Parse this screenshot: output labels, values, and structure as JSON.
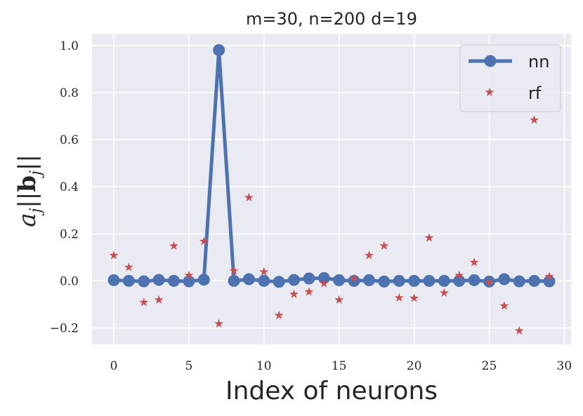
{
  "chart_data": {
    "type": "line",
    "title": "m=30, n=200 d=19",
    "xlabel": "Index of neurons",
    "ylabel": "a_j||b_j||",
    "xlim": [
      -1.45,
      30.45
    ],
    "ylim": [
      -0.27,
      1.05
    ],
    "xticks": [
      0,
      5,
      10,
      15,
      20,
      25,
      30
    ],
    "yticks": [
      -0.2,
      0.0,
      0.2,
      0.4,
      0.6,
      0.8,
      1.0
    ],
    "xtick_labels": [
      "0",
      "5",
      "10",
      "15",
      "20",
      "25",
      "30"
    ],
    "ytick_labels": [
      "−0.2",
      "0.0",
      "0.2",
      "0.4",
      "0.6",
      "0.8",
      "1.0"
    ],
    "grid": true,
    "legend_position": "top-right",
    "series": [
      {
        "name": "nn",
        "style": "line-circle",
        "color": "#4c72b0",
        "x": [
          0,
          1,
          2,
          3,
          4,
          5,
          6,
          7,
          8,
          9,
          10,
          11,
          12,
          13,
          14,
          15,
          16,
          17,
          18,
          19,
          20,
          21,
          22,
          23,
          24,
          25,
          26,
          27,
          28,
          29
        ],
        "y": [
          0.003,
          0.0,
          -0.002,
          0.004,
          0.0,
          -0.002,
          0.005,
          0.98,
          0.0,
          0.007,
          0.0,
          -0.004,
          0.004,
          0.01,
          0.012,
          0.003,
          0.0,
          0.003,
          -0.003,
          0.0,
          0.0,
          0.0,
          0.0,
          0.0,
          0.003,
          -0.003,
          0.007,
          -0.002,
          0.0,
          -0.002
        ]
      },
      {
        "name": "rf",
        "style": "star",
        "color": "#c44e52",
        "x": [
          0,
          1,
          2,
          3,
          4,
          5,
          6,
          7,
          8,
          9,
          10,
          11,
          12,
          13,
          14,
          15,
          16,
          17,
          18,
          19,
          20,
          21,
          22,
          23,
          24,
          25,
          26,
          27,
          28,
          29
        ],
        "y": [
          0.11,
          0.06,
          -0.09,
          -0.08,
          0.15,
          0.025,
          0.17,
          -0.18,
          0.045,
          0.355,
          0.04,
          -0.145,
          -0.055,
          -0.045,
          -0.01,
          -0.08,
          0.012,
          0.11,
          0.15,
          -0.07,
          -0.072,
          0.185,
          -0.05,
          0.025,
          0.08,
          -0.005,
          -0.105,
          -0.21,
          0.685,
          0.02
        ]
      }
    ]
  },
  "colors": {
    "plot_background": "#eaeaf2",
    "grid": "#ffffff",
    "text": "#262626"
  }
}
